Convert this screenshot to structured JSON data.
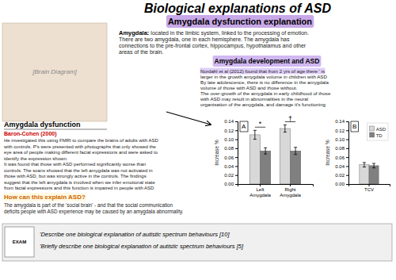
{
  "title": "Biological explanations of ASD",
  "subtitle": "Amygdala dysfunction explanation",
  "annotations": [
    [
      "[Brain Diagram]"
    ],
    [
      "Amygdala:",
      " located in the limbic system, linked to the processing of emotion.",
      "There are two amygdala, one in each hemisphere. The amygdala has",
      "connections to the pre-frontal cortex, hippocampus, hypothalamus and other",
      "areas of the brain."
    ],
    [
      "Amygdala development and ASD"
    ],
    [
      "Nordahl et al (2012) found that from 2 yrs of age there ' is",
      "larger in the growth amygdala volume in children with ASD",
      "By late adolescence, there is no difference in the amygdala",
      "volume of those with ASD and those without.",
      "The over-growth of the amygdala in early childhood of those",
      "with ASD may result in abnormalities in the neural",
      "organisation of the amygdala, and damage it's functioning"
    ],
    [
      "Amygdala dysfunction"
    ],
    [
      "Baron-Cohen (2000)"
    ],
    [
      "He investigated this using FMRI to compare the brains of adults with ASD",
      "with controls. P's were presented with photographs that only showed the",
      "eye area of people making different facial expressions and were asked to",
      "identify the expression shown.",
      "It was found that those with ASD performed significantly worse than",
      "controls. The scans showed that the left amygdala was not activated in",
      "those with ASD, but was strongly active in the controls. The findings",
      "suggest that the left amygdala is involved when we infer emotional state",
      "from facial expressions and this function is impaired in people with ASD"
    ],
    [
      "How can this explain ASD?"
    ],
    [
      "The amygdala is part of the 'social brain' - and that the social communication",
      "deficits people with ASD experience may be caused by an amygdala abnormality."
    ],
    [
      "EXAM"
    ],
    [
      "'Describe one biological explanation of autistic spectrum behaviours [10]",
      "'Briefly describe one biological explanation of autistic spectrum behaviours [5]"
    ]
  ],
  "chart_data": [
    {
      "type": "bar",
      "title": "A",
      "categories": [
        "Left\nAmygdala",
        "Right\nAmygdala"
      ],
      "series": [
        {
          "color": "#d8d8d8",
          "values": [
            0.11,
            0.124
          ],
          "errors": [
            0.01,
            0.008
          ]
        },
        {
          "color": "#808080",
          "values": [
            0.074,
            0.074
          ],
          "errors": [
            0.007,
            0.008
          ]
        }
      ],
      "ylabel": "Increase %",
      "ylim": [
        0.0,
        0.14
      ],
      "yticks": [
        {
          "value": 0.0,
          "label": "0.00"
        },
        0.02,
        0.04,
        0.06,
        0.08,
        {
          "value": 0.1,
          "label": "0.10"
        },
        0.12,
        0.14
      ],
      "annotations": [
        "*",
        "†"
      ]
    },
    {
      "type": "bar",
      "title": "B",
      "categories": [
        "TCV"
      ],
      "series": [
        {
          "name": "ASD",
          "color": "#d8d8d8",
          "values": [
            0.043
          ],
          "errors": [
            0.005
          ]
        },
        {
          "name": "TD",
          "color": "#808080",
          "values": [
            0.041
          ],
          "errors": [
            0.005
          ]
        }
      ],
      "ylabel": "Increase %",
      "ylim": [
        0.0,
        0.14
      ],
      "yticks": [
        {
          "value": 0.0,
          "label": "0.00"
        },
        0.02,
        0.04,
        0.06,
        0.08,
        {
          "value": 0.1,
          "label": "0.10"
        },
        0.12,
        0.14
      ],
      "legend": "upper right"
    }
  ]
}
